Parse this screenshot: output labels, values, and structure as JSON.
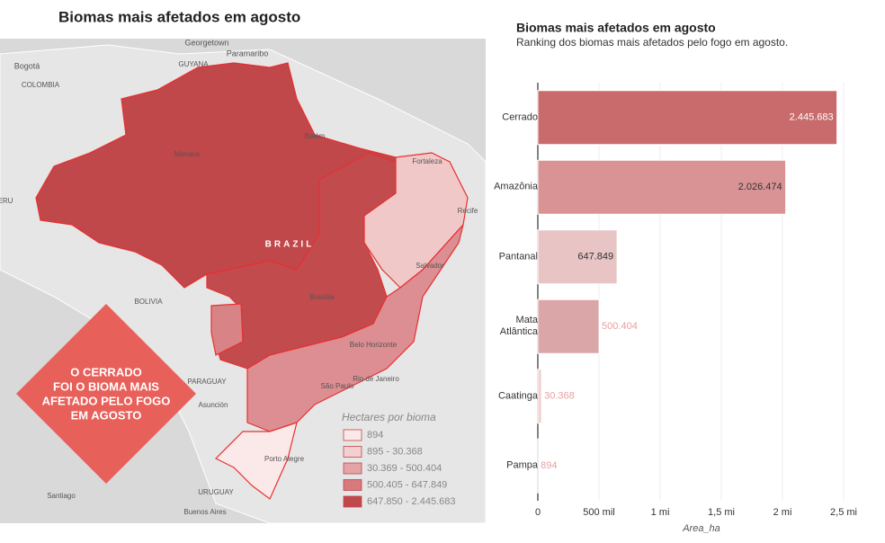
{
  "map": {
    "title": "Biomas mais afetados em agosto",
    "places": [
      "Georgetown",
      "Paramaribo",
      "Bogotá",
      "COLOMBIA",
      "GUYANA",
      "Manaus",
      "Belém",
      "Fortaleza",
      "Recife",
      "BRAZIL",
      "Salvador",
      "BOLIVIA",
      "Brasília",
      "Belo Horizonte",
      "Rio de Janeiro",
      "São Paulo",
      "PARAGUAY",
      "Asunción",
      "Porto Alegre",
      "URUGUAY",
      "Santiago",
      "Buenos Aires",
      "ERU"
    ],
    "callout": [
      "O CERRADO",
      "FOI O BIOMA MAIS",
      "AFETADO PELO FOGO",
      "EM AGOSTO"
    ],
    "legend": {
      "title": "Hectares por bioma",
      "items": [
        {
          "label": "894",
          "color": "#fbe8e8"
        },
        {
          "label": "895 - 30.368",
          "color": "#f3cfcf"
        },
        {
          "label": "30.369 - 500.404",
          "color": "#e4a4a6"
        },
        {
          "label": "500.405 - 647.849",
          "color": "#d7797d"
        },
        {
          "label": "647.850 - 2.445.683",
          "color": "#c0474a"
        }
      ]
    }
  },
  "chart_data": {
    "type": "bar",
    "orientation": "horizontal",
    "title": "Biomas mais afetados em agosto",
    "subtitle": "Ranking dos biomas mais afetados pelo fogo em agosto.",
    "categories": [
      "Cerrado",
      "Amazônia",
      "Pantanal",
      "Mata Atlântica",
      "Caatinga",
      "Pampa"
    ],
    "values": [
      2445683,
      2026474,
      647849,
      500404,
      30368,
      894
    ],
    "value_labels": [
      "2.445.683",
      "2.026.474",
      "647.849",
      "500.404",
      "30.368",
      "894"
    ],
    "colors": [
      "#c96b6d",
      "#d99395",
      "#e8c4c5",
      "#dba6a8",
      "#f0d0d0",
      "#f5dede"
    ],
    "xlim": [
      0,
      2750000
    ],
    "xticks": [
      0,
      {
        "value": 500000,
        "label": "500 mil"
      },
      {
        "value": 1000000,
        "label": "1 mi"
      },
      {
        "value": 1500000,
        "label": "1,5 mi"
      },
      {
        "value": 2000000,
        "label": "2 mi"
      },
      {
        "value": 2500000,
        "label": "2,5 mi"
      }
    ],
    "xlabel": "Area_ha",
    "grid": true
  }
}
